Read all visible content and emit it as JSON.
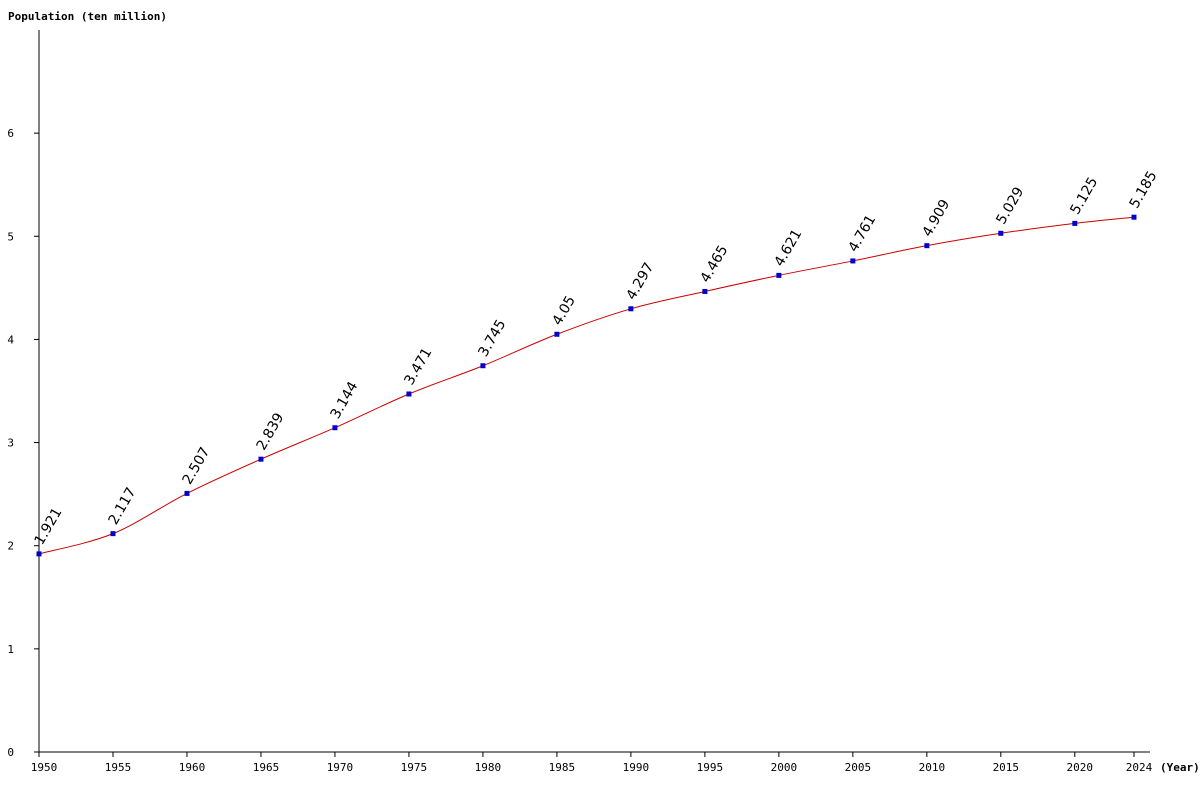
{
  "chart_data": {
    "type": "line",
    "ylabel": "Population (ten million)",
    "xlabel": "(Year)",
    "xlim": [
      1950,
      2024
    ],
    "ylim": [
      0,
      7
    ],
    "y_ticks": [
      0,
      1,
      2,
      3,
      4,
      5,
      6
    ],
    "y_tick_labels": [
      "0",
      "1",
      "2",
      "3",
      "4",
      "5",
      "6"
    ],
    "x_ticks": [
      1950,
      1955,
      1960,
      1965,
      1970,
      1975,
      1980,
      1985,
      1990,
      1995,
      2000,
      2005,
      2010,
      2015,
      2020,
      2024
    ],
    "x_tick_labels": [
      "1950",
      "1955",
      "1960",
      "1965",
      "1970",
      "1975",
      "1980",
      "1985",
      "1990",
      "1995",
      "2000",
      "2005",
      "2010",
      "2015",
      "2020",
      "2024"
    ],
    "grid": false,
    "legend": "none",
    "line_color": "#cc0000",
    "marker_color": "#0000cc",
    "series": [
      {
        "x": [
          1950,
          1955,
          1960,
          1965,
          1970,
          1975,
          1980,
          1985,
          1990,
          1995,
          2000,
          2005,
          2010,
          2015,
          2020,
          2024
        ],
        "values": [
          1.921,
          2.117,
          2.507,
          2.839,
          3.144,
          3.471,
          3.745,
          4.05,
          4.297,
          4.465,
          4.621,
          4.761,
          4.909,
          5.029,
          5.125,
          5.185
        ],
        "value_labels": [
          "1.921",
          "2.117",
          "2.507",
          "2.839",
          "3.144",
          "3.471",
          "3.745",
          "4.05",
          "4.297",
          "4.465",
          "4.621",
          "4.761",
          "4.909",
          "5.029",
          "5.125",
          "5.185"
        ]
      }
    ]
  }
}
